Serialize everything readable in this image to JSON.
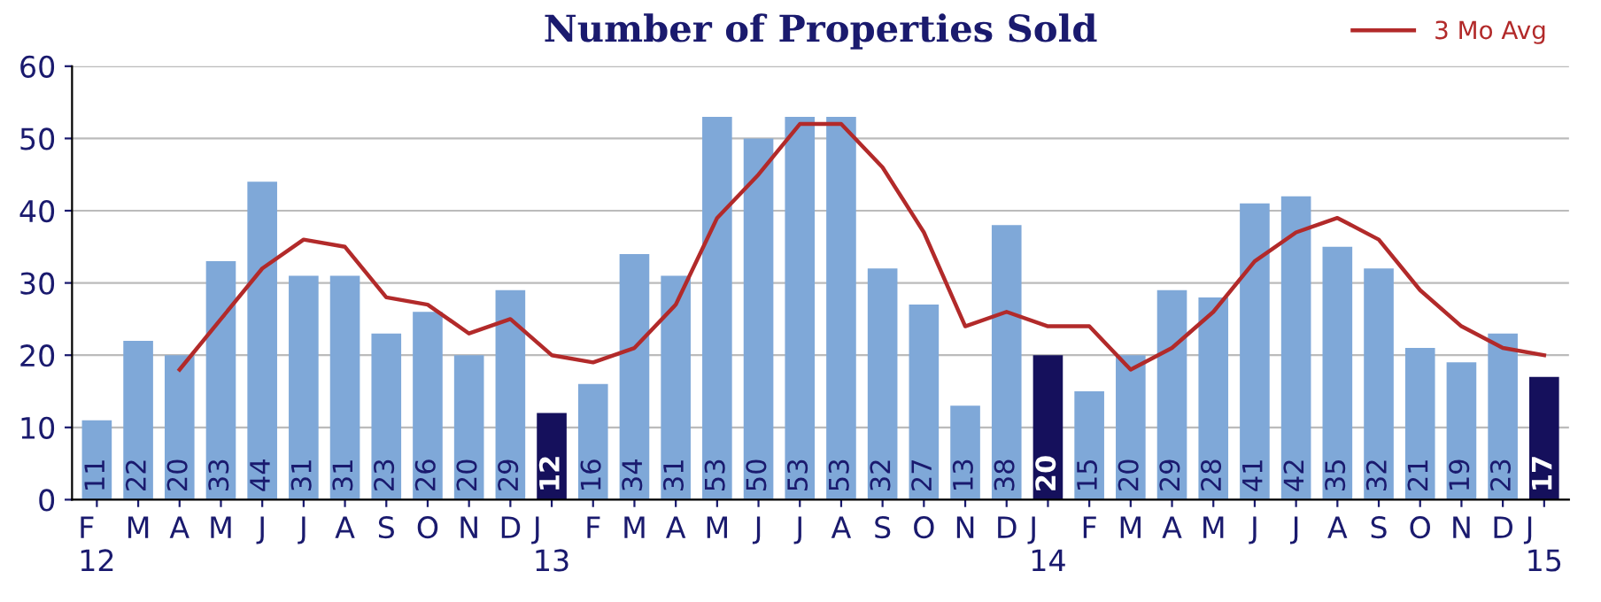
{
  "chart_data": {
    "type": "bar",
    "title": "Number of Properties Sold",
    "categories": [
      "F\n12",
      "M",
      "A",
      "M",
      "J",
      "J",
      "A",
      "S",
      "O",
      "N",
      "D",
      "J\n13",
      "F",
      "M",
      "A",
      "M",
      "J",
      "J",
      "A",
      "S",
      "O",
      "N",
      "D",
      "J\n14",
      "F",
      "M",
      "A",
      "M",
      "J",
      "J",
      "A",
      "S",
      "O",
      "N",
      "D",
      "J\n15"
    ],
    "series": [
      {
        "value_labels": [
          "11",
          "22",
          "20",
          "33",
          "44",
          "31",
          "31",
          "23",
          "26",
          "20",
          "29",
          "12",
          "16",
          "34",
          "31",
          "53",
          "50",
          "53",
          "53",
          "32",
          "27",
          "13",
          "38",
          "20",
          "15",
          "20",
          "29",
          "28",
          "41",
          "42",
          "35",
          "32",
          "21",
          "19",
          "23",
          "17"
        ],
        "colors": [
          "#7fa8d8",
          "#7fa8d8",
          "#7fa8d8",
          "#7fa8d8",
          "#7fa8d8",
          "#7fa8d8",
          "#7fa8d8",
          "#7fa8d8",
          "#7fa8d8",
          "#7fa8d8",
          "#7fa8d8",
          "#15105c",
          "#7fa8d8",
          "#7fa8d8",
          "#7fa8d8",
          "#7fa8d8",
          "#7fa8d8",
          "#7fa8d8",
          "#7fa8d8",
          "#7fa8d8",
          "#7fa8d8",
          "#7fa8d8",
          "#7fa8d8",
          "#15105c",
          "#7fa8d8",
          "#7fa8d8",
          "#7fa8d8",
          "#7fa8d8",
          "#7fa8d8",
          "#7fa8d8",
          "#7fa8d8",
          "#7fa8d8",
          "#7fa8d8",
          "#7fa8d8",
          "#7fa8d8",
          "#15105c"
        ],
        "values": [
          11,
          22,
          20,
          33,
          44,
          31,
          31,
          23,
          26,
          20,
          29,
          12,
          16,
          34,
          31,
          53,
          50,
          53,
          53,
          32,
          27,
          13,
          38,
          20,
          15,
          20,
          29,
          28,
          41,
          42,
          35,
          32,
          21,
          19,
          23,
          17
        ]
      },
      {
        "type": "line",
        "name": "3 Mo Avg",
        "color": "#b22a2a",
        "values": [
          null,
          null,
          18,
          25,
          32,
          36,
          35,
          28,
          27,
          23,
          25,
          20,
          19,
          21,
          27,
          39,
          45,
          52,
          52,
          46,
          37,
          24,
          26,
          24,
          24,
          18,
          21,
          26,
          33,
          37,
          39,
          36,
          29,
          24,
          21,
          20
        ]
      }
    ],
    "ylim": [
      0,
      60
    ],
    "yticks": [
      0,
      10,
      20,
      30,
      40,
      50,
      60
    ],
    "grid": "y",
    "legend": "top right",
    "line_style": "solid",
    "marker": "none"
  }
}
